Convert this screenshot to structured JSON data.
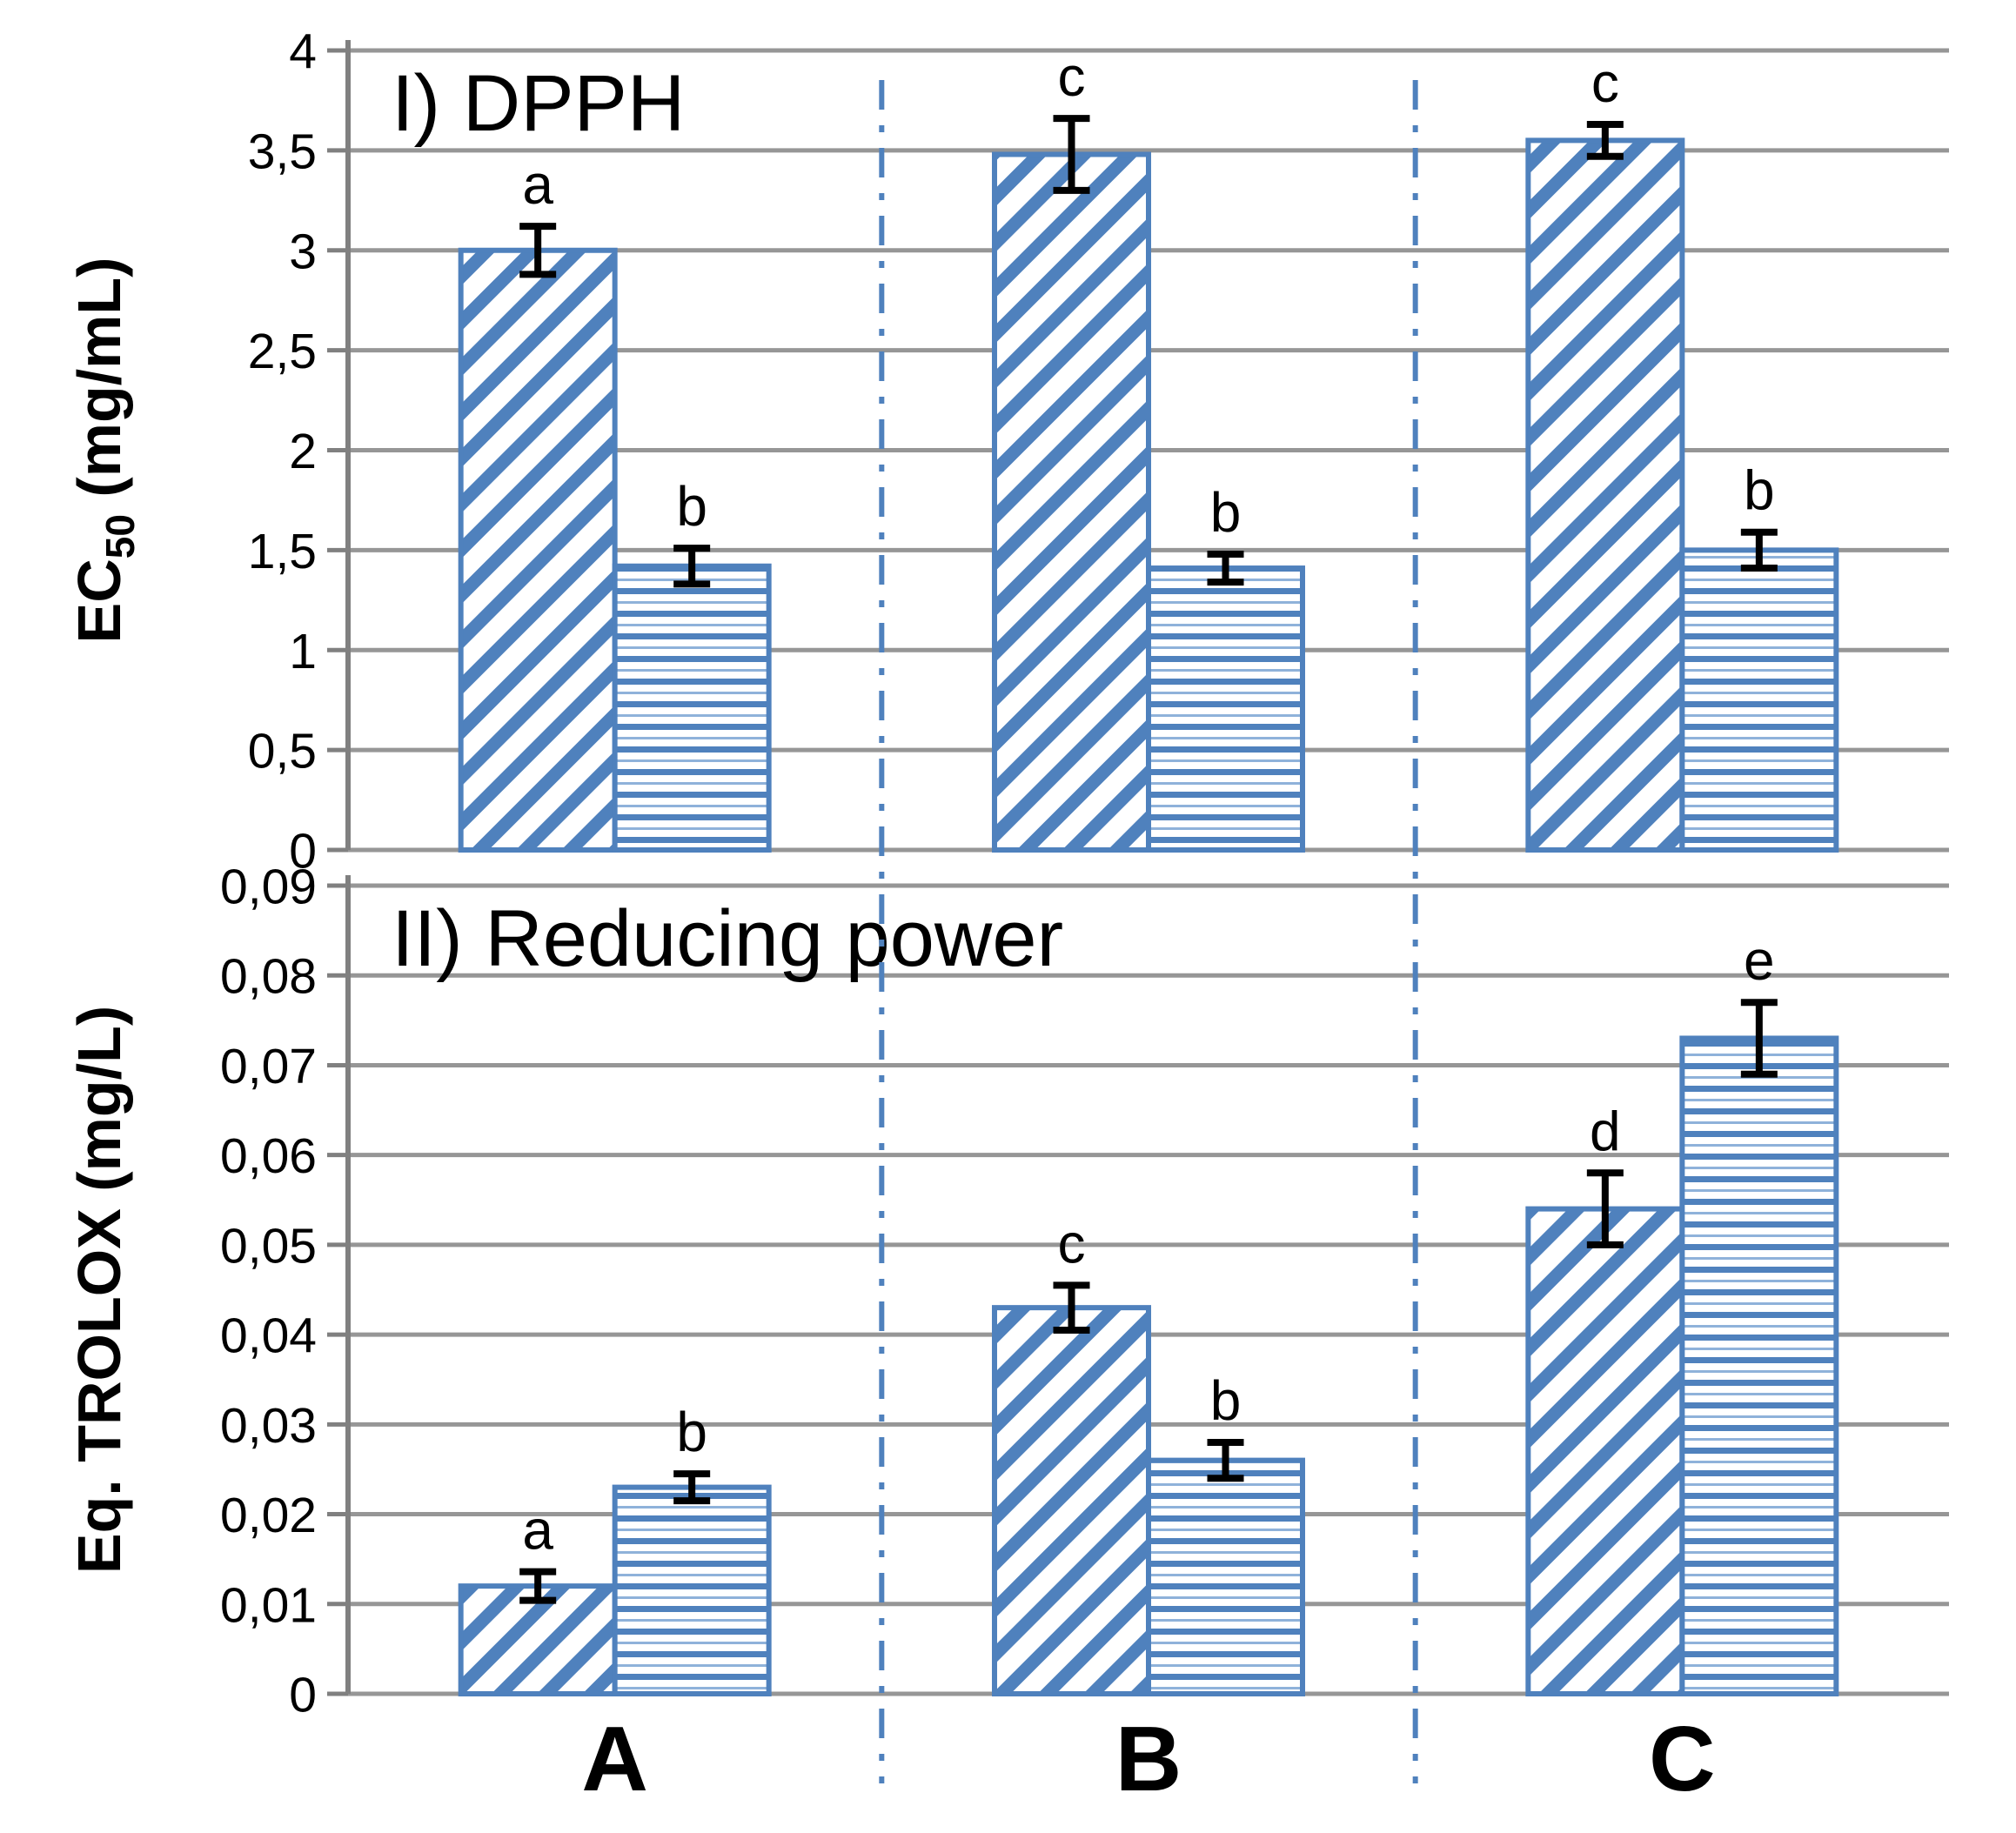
{
  "colors": {
    "bar_blue": "#4f81bd",
    "hatch_light": "#8fb2da",
    "grid_gray": "#969696",
    "axis_gray": "#808080",
    "error_black": "#000000",
    "separator_blue": "#4f81bd",
    "text_black": "#000000"
  },
  "categories": [
    "A",
    "B",
    "C"
  ],
  "chart_data": [
    {
      "type": "bar",
      "panel": "I",
      "title": "I) DPPH",
      "ylabel_parts": [
        {
          "t": "EC",
          "sub": false
        },
        {
          "t": "50",
          "sub": true
        },
        {
          "t": " (mg/mL)",
          "sub": false
        }
      ],
      "ylabel_plain": "EC50 (mg/mL)",
      "categories": [
        "A",
        "B",
        "C"
      ],
      "ylim": [
        0,
        4
      ],
      "ytick_step": 0.5,
      "ytick_labels": [
        "0",
        "0,5",
        "1",
        "1,5",
        "2",
        "2,5",
        "3",
        "3,5",
        "4"
      ],
      "grid": true,
      "legend": "none",
      "series": [
        {
          "name": "hatched-diagonal",
          "values": [
            3.0,
            3.48,
            3.55
          ],
          "errors": [
            0.12,
            0.18,
            0.08
          ],
          "sig_letters": [
            "a",
            "c",
            "c"
          ]
        },
        {
          "name": "hatched-horizontal",
          "values": [
            1.42,
            1.41,
            1.5
          ],
          "errors": [
            0.09,
            0.07,
            0.09
          ],
          "sig_letters": [
            "b",
            "b",
            "b"
          ]
        }
      ]
    },
    {
      "type": "bar",
      "panel": "II",
      "title": "II) Reducing power",
      "ylabel_parts": [
        {
          "t": "Eq. TROLOX (mg/L)",
          "sub": false
        }
      ],
      "ylabel_plain": "Eq. TROLOX (mg/L)",
      "categories": [
        "A",
        "B",
        "C"
      ],
      "ylim": [
        0,
        0.09
      ],
      "ytick_step": 0.01,
      "ytick_labels": [
        "0",
        "0,01",
        "0,02",
        "0,03",
        "0,04",
        "0,05",
        "0,06",
        "0,07",
        "0,08",
        "0,09"
      ],
      "grid": true,
      "legend": "none",
      "series": [
        {
          "name": "hatched-diagonal",
          "values": [
            0.012,
            0.043,
            0.054
          ],
          "errors": [
            0.0016,
            0.0025,
            0.004
          ],
          "sig_letters": [
            "a",
            "c",
            "d"
          ]
        },
        {
          "name": "hatched-horizontal",
          "values": [
            0.023,
            0.026,
            0.073
          ],
          "errors": [
            0.0015,
            0.002,
            0.004
          ],
          "sig_letters": [
            "b",
            "b",
            "e"
          ]
        }
      ]
    }
  ]
}
